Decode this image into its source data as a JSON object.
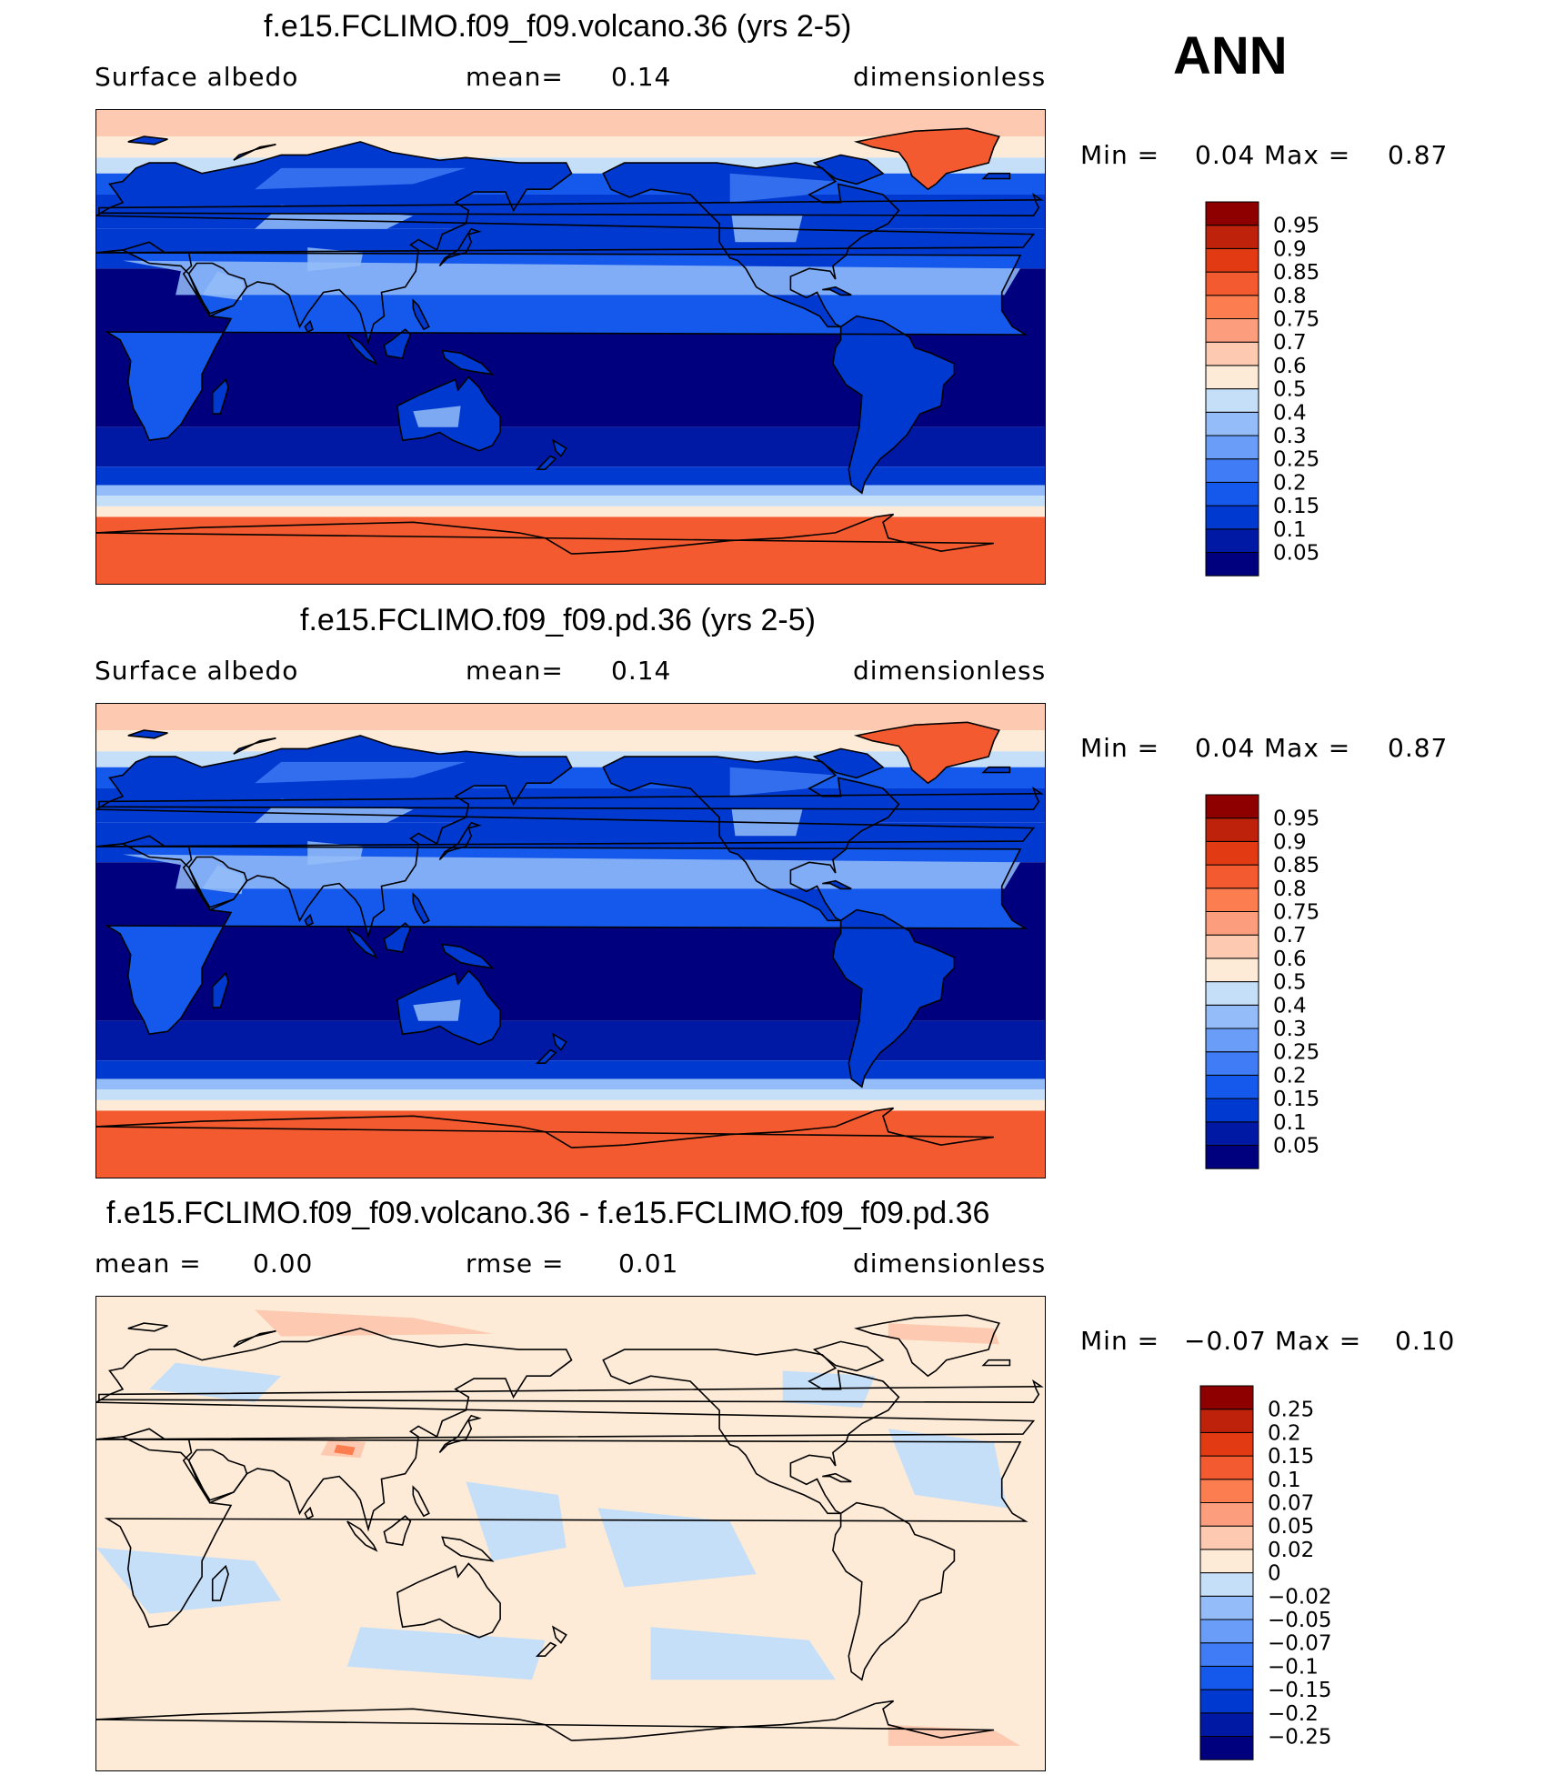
{
  "season": "ANN",
  "colors": {
    "abs_scale": [
      "#00007f",
      "#0019a5",
      "#0039d0",
      "#1558ec",
      "#3f7cf5",
      "#699df7",
      "#93bcf8",
      "#c6dff9",
      "#fdebd7",
      "#fdc9b0",
      "#fc9e7e",
      "#fb7d50",
      "#f45a2f",
      "#e23b14",
      "#bf220b",
      "#8e0000"
    ],
    "diff_scale": [
      "#00007f",
      "#0019a5",
      "#0039d0",
      "#1558ec",
      "#3f7cf5",
      "#699df7",
      "#93bcf8",
      "#c6dff9",
      "#fdebd7",
      "#fdc9b0",
      "#fc9e7e",
      "#fb7d50",
      "#f45a2f",
      "#e23b14",
      "#bf220b",
      "#8e0000"
    ],
    "land_coast": "#000000"
  },
  "panels": [
    {
      "title": "f.e15.FCLIMO.f09_f09.volcano.36 (yrs 2-5)",
      "left_label": "Surface albedo",
      "mid_label": "mean=",
      "mid_value": "0.14",
      "right_label": "dimensionless",
      "min_label": "Min =",
      "min_value": "0.04",
      "max_label": "Max =",
      "max_value": "0.87"
    },
    {
      "title": "f.e15.FCLIMO.f09_f09.pd.36 (yrs 2-5)",
      "left_label": "Surface albedo",
      "mid_label": "mean=",
      "mid_value": "0.14",
      "right_label": "dimensionless",
      "min_label": "Min =",
      "min_value": "0.04",
      "max_label": "Max =",
      "max_value": "0.87"
    },
    {
      "title": "f.e15.FCLIMO.f09_f09.volcano.36 - f.e15.FCLIMO.f09_f09.pd.36",
      "left_label": "mean =",
      "left_value": "0.00",
      "mid_label": "rmse =",
      "mid_value": "0.01",
      "right_label": "dimensionless",
      "min_label": "Min =",
      "min_value": "−0.07",
      "max_label": "Max =",
      "max_value": "0.10"
    }
  ],
  "chart_data": [
    {
      "type": "heatmap",
      "title": "f.e15.FCLIMO.f09_f09.volcano.36 (yrs 2-5)",
      "variable": "Surface albedo",
      "units": "dimensionless",
      "mean": 0.14,
      "min": 0.04,
      "max": 0.87,
      "colorbar_levels": [
        "0.05",
        "0.1",
        "0.15",
        "0.2",
        "0.25",
        "0.3",
        "0.4",
        "0.5",
        "0.6",
        "0.7",
        "0.75",
        "0.8",
        "0.85",
        "0.9",
        "0.95"
      ]
    },
    {
      "type": "heatmap",
      "title": "f.e15.FCLIMO.f09_f09.pd.36 (yrs 2-5)",
      "variable": "Surface albedo",
      "units": "dimensionless",
      "mean": 0.14,
      "min": 0.04,
      "max": 0.87,
      "colorbar_levels": [
        "0.05",
        "0.1",
        "0.15",
        "0.2",
        "0.25",
        "0.3",
        "0.4",
        "0.5",
        "0.6",
        "0.7",
        "0.75",
        "0.8",
        "0.85",
        "0.9",
        "0.95"
      ]
    },
    {
      "type": "heatmap",
      "title": "f.e15.FCLIMO.f09_f09.volcano.36 - f.e15.FCLIMO.f09_f09.pd.36",
      "units": "dimensionless",
      "mean": 0.0,
      "rmse": 0.01,
      "min": -0.07,
      "max": 0.1,
      "colorbar_levels": [
        "−0.25",
        "−0.2",
        "−0.15",
        "−0.1",
        "−0.07",
        "−0.05",
        "−0.02",
        "0",
        "0.02",
        "0.05",
        "0.07",
        "0.1",
        "0.15",
        "0.2",
        "0.25"
      ]
    }
  ]
}
